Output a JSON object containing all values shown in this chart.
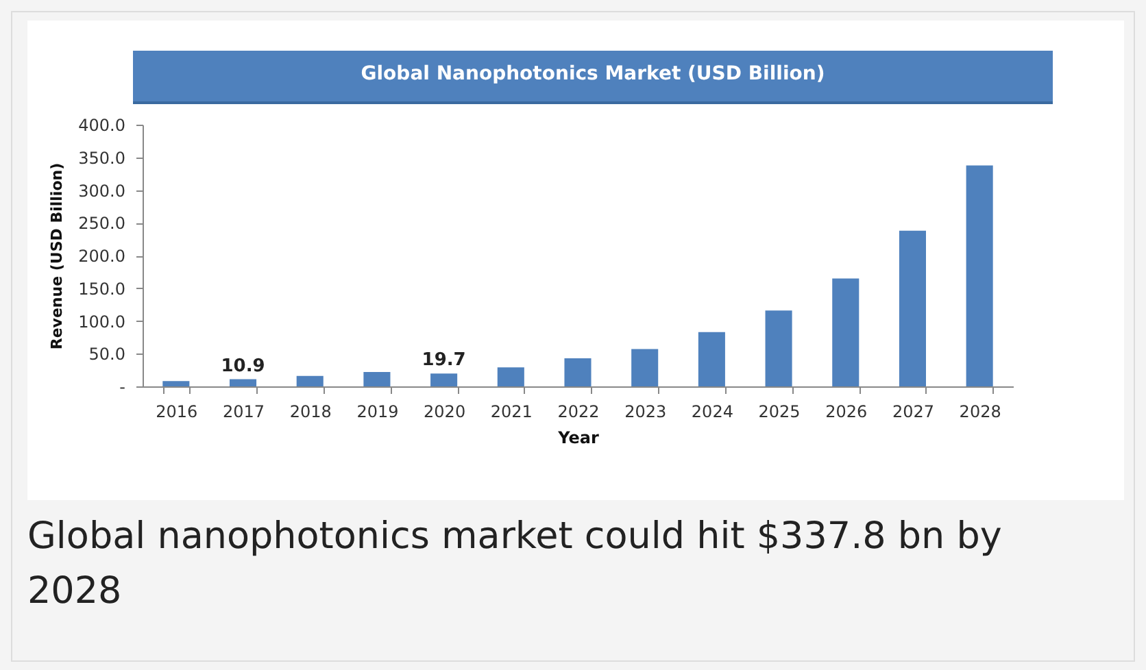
{
  "chart_data": {
    "type": "bar",
    "title": "Global Nanophotonics Market (USD Billion)",
    "xlabel": "Year",
    "ylabel": "Revenue (USD Billion)",
    "categories": [
      "2016",
      "2017",
      "2018",
      "2019",
      "2020",
      "2021",
      "2022",
      "2023",
      "2024",
      "2025",
      "2026",
      "2027",
      "2028"
    ],
    "values": [
      8,
      10.9,
      16,
      22,
      19.7,
      29,
      43,
      57,
      83,
      116,
      165,
      238,
      337.8
    ],
    "value_labels": [
      null,
      "10.9",
      null,
      null,
      "19.7",
      null,
      null,
      null,
      null,
      null,
      null,
      null,
      null
    ],
    "color": "#4f81bd",
    "ylim": [
      0,
      400
    ],
    "yticks": [
      {
        "value": 0,
        "label": "-"
      },
      {
        "value": 50,
        "label": "50.0"
      },
      {
        "value": 100,
        "label": "100.0"
      },
      {
        "value": 150,
        "label": "150.0"
      },
      {
        "value": 200,
        "label": "200.0"
      },
      {
        "value": 250,
        "label": "250.0"
      },
      {
        "value": 300,
        "label": "300.0"
      },
      {
        "value": 350,
        "label": "350.0"
      },
      {
        "value": 400,
        "label": "400.0"
      }
    ],
    "grid": false,
    "annotations": [
      "Global nanophotonics market could hit $337.8 bn by 2028"
    ]
  }
}
